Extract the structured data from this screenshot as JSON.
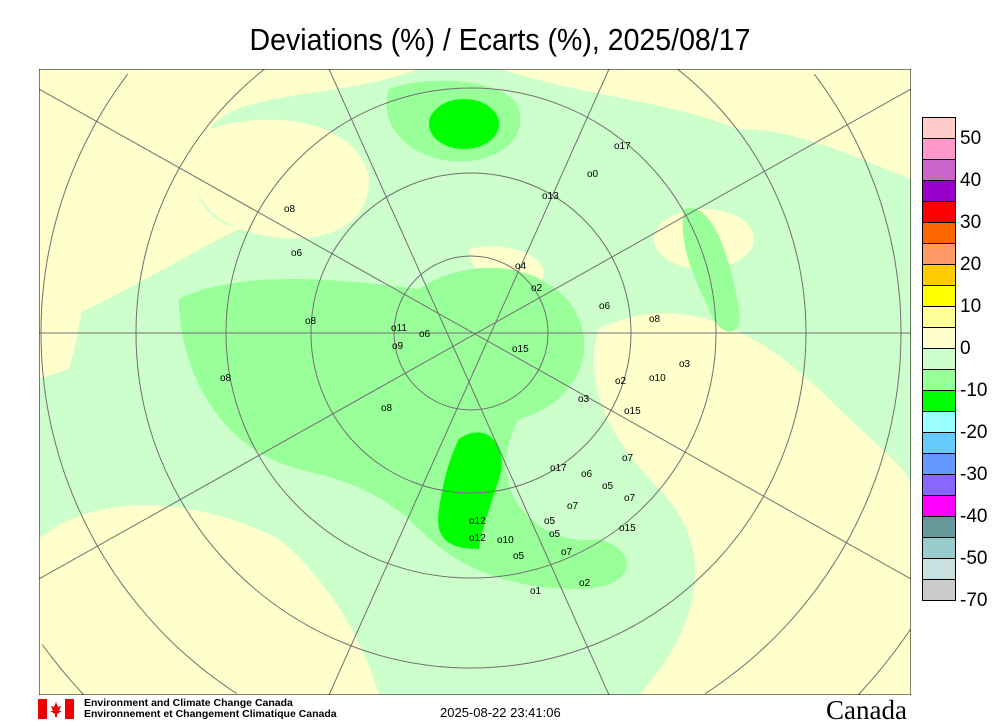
{
  "title": "Deviations (%) / Ecarts (%), 2025/08/17",
  "legend": {
    "colors": [
      "#ffcccc",
      "#ff99cc",
      "#cc66cc",
      "#9900cc",
      "#ff0000",
      "#ff6600",
      "#ff9966",
      "#ffcc00",
      "#ffff00",
      "#ffff99",
      "#ffffcc",
      "#ccffcc",
      "#99ff99",
      "#00ff00",
      "#99ffff",
      "#66ccff",
      "#6699ff",
      "#8866ff",
      "#ff00ff",
      "#669999",
      "#99cccc",
      "#c8e0e0",
      "#cccccc"
    ],
    "labels": [
      "50",
      "40",
      "30",
      "20",
      "10",
      "0",
      "-10",
      "-20",
      "-30",
      "-40",
      "-50",
      "-70"
    ]
  },
  "stations": [
    "8",
    "6",
    "8",
    "0",
    "17",
    "13",
    "4",
    "2",
    "6",
    "8",
    "11",
    "6",
    "8",
    "15",
    "2",
    "8",
    "10",
    "3",
    "15",
    "7",
    "6",
    "5",
    "7",
    "15",
    "12",
    "12",
    "10",
    "5",
    "7",
    "5",
    "5",
    "7",
    "2",
    "1",
    "3",
    "17",
    "9"
  ],
  "footer": {
    "org_en": "Environment and Climate Change Canada",
    "org_fr": "Environnement et Changement Climatique Canada",
    "timestamp": "2025-08-22 23:41:06",
    "wordmark": "Canada"
  }
}
